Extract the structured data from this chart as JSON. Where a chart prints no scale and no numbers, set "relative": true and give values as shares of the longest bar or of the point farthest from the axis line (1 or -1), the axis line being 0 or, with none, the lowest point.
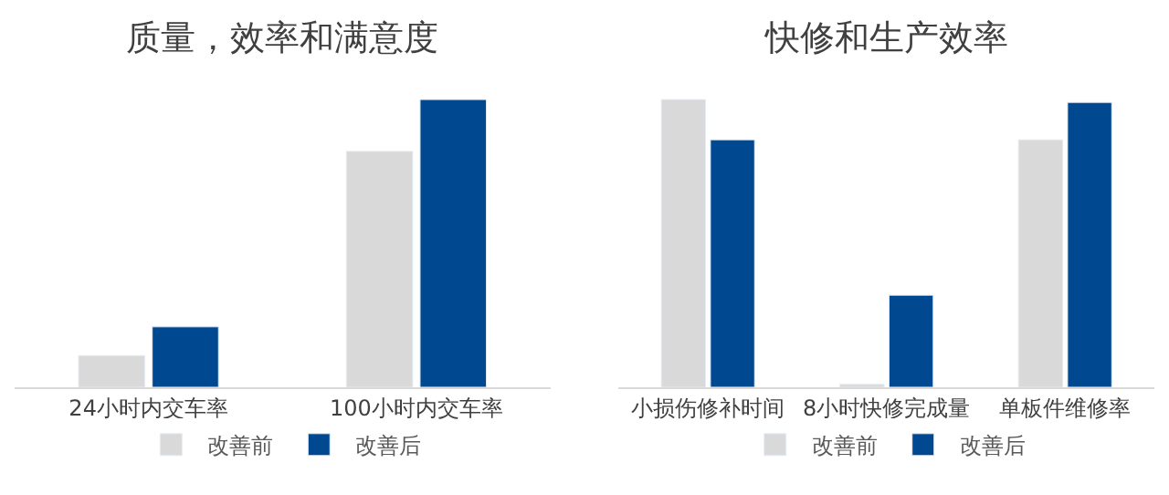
{
  "chart_data": [
    {
      "type": "bar",
      "title": "质量，效率和满意度",
      "relative": true,
      "categories": [
        "24小时内交车率",
        "100小时内交车率"
      ],
      "legend": "bottom",
      "series": [
        {
          "name": "改善前",
          "color": "#d9d9d9",
          "values": [
            0.11,
            0.82
          ]
        },
        {
          "name": "改善后",
          "color": "#004990",
          "values": [
            0.21,
            1
          ]
        }
      ]
    },
    {
      "type": "bar",
      "title": "快修和生产效率",
      "relative": true,
      "categories": [
        "小损伤修补时间",
        "8小时快修完成量",
        "单板件维修率"
      ],
      "legend": "bottom",
      "series": [
        {
          "name": "改善前",
          "color": "#d9d9d9",
          "values": [
            1,
            0.01,
            0.86
          ]
        },
        {
          "name": "改善后",
          "color": "#004990",
          "values": [
            0.86,
            0.32,
            0.99
          ]
        }
      ]
    }
  ]
}
